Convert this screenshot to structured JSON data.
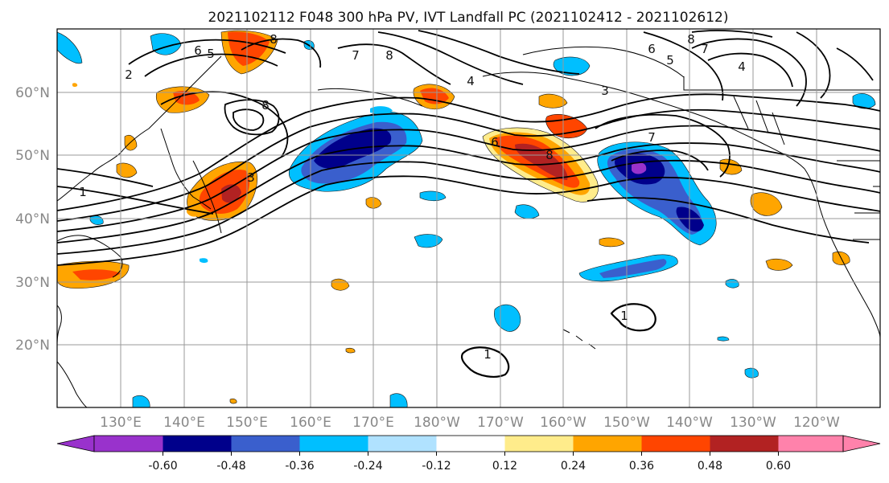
{
  "title": "2021102112 F048 300 hPa PV, IVT Landfall PC (2021102412 - 2021102612)",
  "map": {
    "lon_range_deg_east": [
      120,
      245
    ],
    "lat_range": [
      10,
      70
    ],
    "lat_ticks": [
      "20°N",
      "30°N",
      "40°N",
      "50°N",
      "60°N"
    ],
    "lon_ticks": [
      "130°E",
      "140°E",
      "150°E",
      "160°E",
      "170°E",
      "180°W",
      "170°W",
      "160°W",
      "150°W",
      "140°W",
      "130°W",
      "120°W"
    ],
    "gridlines": true
  },
  "colorbar": {
    "orientation": "horizontal",
    "extend": "both",
    "tick_labels": [
      "-0.60",
      "-0.48",
      "-0.36",
      "-0.24",
      "-0.12",
      "0.12",
      "0.24",
      "0.36",
      "0.48",
      "0.60"
    ],
    "colors": [
      "#9932cc",
      "#00008b",
      "#3a5fcd",
      "#00bfff",
      "#b0e2ff",
      "#ffffff",
      "#ffec8b",
      "#ffa500",
      "#ff4500",
      "#b22222",
      "#ff82ab"
    ]
  },
  "contour_labels": [
    "8",
    "6",
    "5",
    "7",
    "8",
    "2",
    "8",
    "4",
    "3",
    "6",
    "8",
    "1",
    "8",
    "6",
    "5",
    "7",
    "4",
    "3",
    "7",
    "1",
    "1"
  ]
}
